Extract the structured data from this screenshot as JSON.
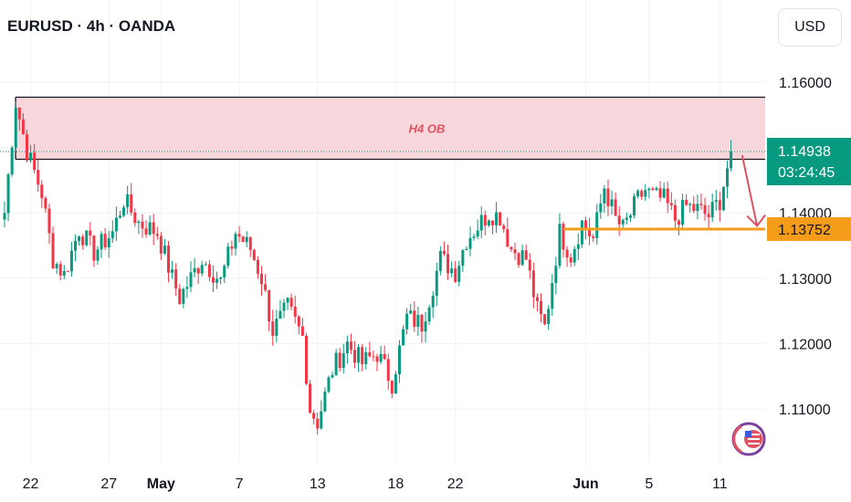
{
  "header": {
    "title": "EURUSD · 4h · OANDA",
    "currency": "USD"
  },
  "chart_data": {
    "type": "candlestick",
    "symbol": "EURUSD",
    "timeframe": "4h",
    "source": "OANDA",
    "ylim": [
      1.104,
      1.164
    ],
    "y_ticks": [
      {
        "value": 1.16,
        "label": "1.16000"
      },
      {
        "value": 1.14,
        "label": "1.14000"
      },
      {
        "value": 1.13,
        "label": "1.13000"
      },
      {
        "value": 1.12,
        "label": "1.12000"
      },
      {
        "value": 1.11,
        "label": "1.11000"
      }
    ],
    "x_ticks": [
      {
        "bar": 7,
        "label": "22",
        "bold": false
      },
      {
        "bar": 28,
        "label": "27",
        "bold": false
      },
      {
        "bar": 42,
        "label": "May",
        "bold": true
      },
      {
        "bar": 63,
        "label": "7",
        "bold": false
      },
      {
        "bar": 84,
        "label": "13",
        "bold": false
      },
      {
        "bar": 105,
        "label": "18",
        "bold": false
      },
      {
        "bar": 121,
        "label": "22",
        "bold": false
      },
      {
        "bar": 156,
        "label": "Jun",
        "bold": true
      },
      {
        "bar": 173,
        "label": "5",
        "bold": false
      },
      {
        "bar": 192,
        "label": "11",
        "bold": false
      }
    ],
    "anchors": [
      [
        0,
        1.14
      ],
      [
        3,
        1.157
      ],
      [
        6,
        1.1495
      ],
      [
        10,
        1.143
      ],
      [
        13,
        1.133
      ],
      [
        16,
        1.1305
      ],
      [
        20,
        1.1375
      ],
      [
        24,
        1.134
      ],
      [
        29,
        1.137
      ],
      [
        32,
        1.142
      ],
      [
        36,
        1.1385
      ],
      [
        41,
        1.137
      ],
      [
        45,
        1.13
      ],
      [
        47,
        1.127
      ],
      [
        53,
        1.133
      ],
      [
        58,
        1.1295
      ],
      [
        62,
        1.137
      ],
      [
        66,
        1.1345
      ],
      [
        69,
        1.13
      ],
      [
        72,
        1.122
      ],
      [
        76,
        1.1255
      ],
      [
        80,
        1.121
      ],
      [
        82,
        1.11
      ],
      [
        84,
        1.108
      ],
      [
        88,
        1.116
      ],
      [
        92,
        1.12
      ],
      [
        96,
        1.117
      ],
      [
        100,
        1.1185
      ],
      [
        104,
        1.114
      ],
      [
        108,
        1.124
      ],
      [
        112,
        1.123
      ],
      [
        117,
        1.133
      ],
      [
        121,
        1.131
      ],
      [
        124,
        1.136
      ],
      [
        130,
        1.14
      ],
      [
        133,
        1.1395
      ],
      [
        136,
        1.1345
      ],
      [
        140,
        1.133
      ],
      [
        143,
        1.125
      ],
      [
        145,
        1.1225
      ],
      [
        149,
        1.137
      ],
      [
        152,
        1.1335
      ],
      [
        155,
        1.1385
      ],
      [
        158,
        1.136
      ],
      [
        161,
        1.144
      ],
      [
        164,
        1.139
      ],
      [
        166,
        1.1375
      ],
      [
        170,
        1.142
      ],
      [
        172,
        1.1435
      ],
      [
        174,
        1.1425
      ],
      [
        177,
        1.142
      ],
      [
        180,
        1.139
      ],
      [
        183,
        1.141
      ],
      [
        186,
        1.1405
      ],
      [
        189,
        1.1395
      ],
      [
        192,
        1.142
      ],
      [
        195,
        1.1494
      ]
    ],
    "last_bar": 195,
    "order_block": {
      "label": "H4 OB",
      "top": 1.1577,
      "bottom": 1.1482,
      "start_bar": 1,
      "end_bar": 201,
      "color": "#f8d7dc"
    },
    "support_line": {
      "value": 1.13752,
      "start_bar": 150,
      "end_bar": 205,
      "color": "#f59c1a"
    },
    "current_price": {
      "value": 1.14938,
      "label": "1.14938",
      "countdown": "03:24:45",
      "color": "#089981"
    },
    "support_badge": {
      "label": "1.13752",
      "color": "#f59c1a"
    },
    "arrow": {
      "from_bar": 198,
      "from_value": 1.1488,
      "to_bar": 202,
      "to_value": 1.138,
      "color": "#e05260"
    },
    "colors": {
      "up": "#089981",
      "down": "#f23645",
      "grid": "#f0f3fa",
      "line": "#131722"
    }
  }
}
